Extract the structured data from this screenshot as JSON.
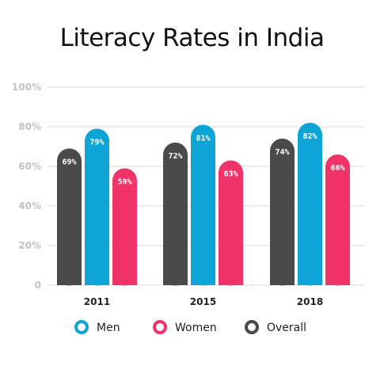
{
  "chart_data": {
    "type": "bar",
    "title": "Literacy Rates in India",
    "categories": [
      "2011",
      "2015",
      "2018"
    ],
    "ylim": [
      0,
      100
    ],
    "yticks": [
      "0",
      "20%",
      "40%",
      "60%",
      "80%",
      "100%"
    ],
    "grid": true,
    "legend_position": "bottom",
    "series": [
      {
        "name": "Overall",
        "color": "#4a4a4a",
        "values": [
          69,
          72,
          74
        ],
        "labels": [
          "69%",
          "72%",
          "74%"
        ]
      },
      {
        "name": "Men",
        "color": "#0ea5d6",
        "values": [
          79,
          81,
          82
        ],
        "labels": [
          "79%",
          "81%",
          "82%"
        ]
      },
      {
        "name": "Women",
        "color": "#f0346a",
        "values": [
          59,
          63,
          66
        ],
        "labels": [
          "59%",
          "63%",
          "66%"
        ]
      }
    ],
    "legend_order": [
      "Men",
      "Women",
      "Overall"
    ]
  }
}
